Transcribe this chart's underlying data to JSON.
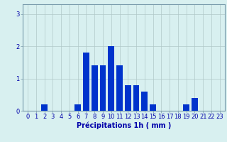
{
  "categories": [
    0,
    1,
    2,
    3,
    4,
    5,
    6,
    7,
    8,
    9,
    10,
    11,
    12,
    13,
    14,
    15,
    16,
    17,
    18,
    19,
    20,
    21,
    22,
    23
  ],
  "values": [
    0,
    0,
    0.2,
    0,
    0,
    0,
    0.2,
    1.8,
    1.4,
    1.4,
    2.0,
    1.4,
    0.8,
    0.8,
    0.6,
    0.2,
    0,
    0,
    0,
    0.2,
    0.4,
    0,
    0,
    0
  ],
  "bar_color": "#0033cc",
  "background_color": "#d8f0f0",
  "grid_color": "#b0c8c8",
  "xlabel": "Précipitations 1h ( mm )",
  "xlabel_fontsize": 7.0,
  "ylabel_ticks": [
    0,
    1,
    2,
    3
  ],
  "ylim": [
    0,
    3.3
  ],
  "xlim": [
    -0.6,
    23.6
  ],
  "tick_fontsize": 6.0,
  "bar_width": 0.75,
  "spine_color": "#7799aa",
  "label_color": "#0000aa"
}
